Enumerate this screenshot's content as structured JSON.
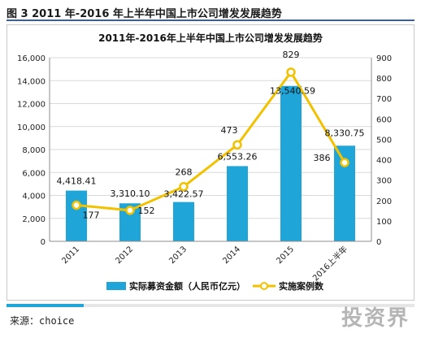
{
  "figure_title": "图 3 2011 年-2016 年上半年中国上市公司增发发展趋势",
  "source_label": "来源：",
  "source_value": "choice",
  "watermark_text": "投资界",
  "chart_data": {
    "type": "bar+line",
    "title": "2011年-2016年上半年中国上市公司增发发展趋势",
    "categories": [
      "2011",
      "2012",
      "2013",
      "2014",
      "2015",
      "2016上半年"
    ],
    "series": [
      {
        "name": "实际募资金额（人民币亿元）",
        "type": "bar",
        "axis": "left",
        "color": "#1fa5d8",
        "values": [
          4418.41,
          3310.1,
          3422.57,
          6553.26,
          13540.59,
          8330.75
        ],
        "labels": [
          "4,418.41",
          "3,310.10",
          "3,422.57",
          "6,553.26",
          "13,540.59",
          "8,330.75"
        ]
      },
      {
        "name": "实施案例数",
        "type": "line",
        "axis": "right",
        "color": "#f2c200",
        "values": [
          177,
          152,
          268,
          473,
          829,
          386
        ],
        "labels": [
          "177",
          "152",
          "268",
          "473",
          "829",
          "386"
        ]
      }
    ],
    "y_left": {
      "min": 0,
      "max": 16000,
      "ticks": [
        "0",
        "2,000",
        "4,000",
        "6,000",
        "8,000",
        "10,000",
        "12,000",
        "14,000",
        "16,000"
      ]
    },
    "y_right": {
      "min": 0,
      "max": 900,
      "ticks": [
        "0",
        "100",
        "200",
        "300",
        "400",
        "500",
        "600",
        "700",
        "800",
        "900"
      ]
    },
    "grid": true,
    "legend_position": "bottom"
  }
}
